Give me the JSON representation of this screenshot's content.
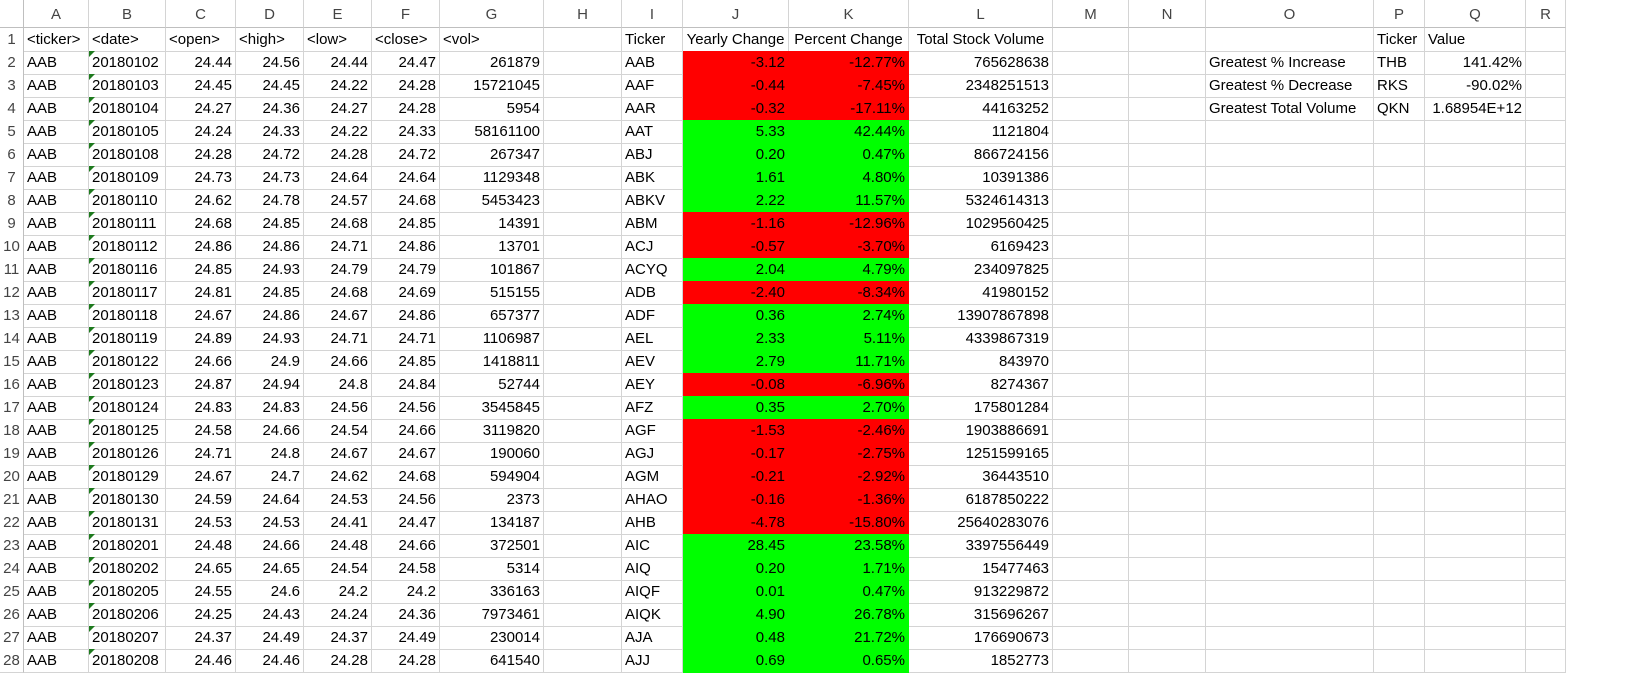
{
  "colors": {
    "negative_fill": "#ff0000",
    "positive_fill": "#00ff00",
    "gridline": "#d4d4d4",
    "number_stored_as_text_marker": "#1e7a1e"
  },
  "column_letters": [
    "A",
    "B",
    "C",
    "D",
    "E",
    "F",
    "G",
    "H",
    "I",
    "J",
    "K",
    "L",
    "M",
    "N",
    "O",
    "P",
    "Q",
    "R"
  ],
  "row_numbers": [
    "1",
    "2",
    "3",
    "4",
    "5",
    "6",
    "7",
    "8",
    "9",
    "10",
    "11",
    "12",
    "13",
    "14",
    "15",
    "16",
    "17",
    "18",
    "19",
    "20",
    "21",
    "22",
    "23",
    "24",
    "25",
    "26",
    "27",
    "28"
  ],
  "raw_headers": [
    "<ticker>",
    "<date>",
    "<open>",
    "<high>",
    "<low>",
    "<close>",
    "<vol>"
  ],
  "raw_rows": [
    [
      "AAB",
      "20180102",
      "24.44",
      "24.56",
      "24.44",
      "24.47",
      "261879"
    ],
    [
      "AAB",
      "20180103",
      "24.45",
      "24.45",
      "24.22",
      "24.28",
      "15721045"
    ],
    [
      "AAB",
      "20180104",
      "24.27",
      "24.36",
      "24.27",
      "24.28",
      "5954"
    ],
    [
      "AAB",
      "20180105",
      "24.24",
      "24.33",
      "24.22",
      "24.33",
      "58161100"
    ],
    [
      "AAB",
      "20180108",
      "24.28",
      "24.72",
      "24.28",
      "24.72",
      "267347"
    ],
    [
      "AAB",
      "20180109",
      "24.73",
      "24.73",
      "24.64",
      "24.64",
      "1129348"
    ],
    [
      "AAB",
      "20180110",
      "24.62",
      "24.78",
      "24.57",
      "24.68",
      "5453423"
    ],
    [
      "AAB",
      "20180111",
      "24.68",
      "24.85",
      "24.68",
      "24.85",
      "14391"
    ],
    [
      "AAB",
      "20180112",
      "24.86",
      "24.86",
      "24.71",
      "24.86",
      "13701"
    ],
    [
      "AAB",
      "20180116",
      "24.85",
      "24.93",
      "24.79",
      "24.79",
      "101867"
    ],
    [
      "AAB",
      "20180117",
      "24.81",
      "24.85",
      "24.68",
      "24.69",
      "515155"
    ],
    [
      "AAB",
      "20180118",
      "24.67",
      "24.86",
      "24.67",
      "24.86",
      "657377"
    ],
    [
      "AAB",
      "20180119",
      "24.89",
      "24.93",
      "24.71",
      "24.71",
      "1106987"
    ],
    [
      "AAB",
      "20180122",
      "24.66",
      "24.9",
      "24.66",
      "24.85",
      "1418811"
    ],
    [
      "AAB",
      "20180123",
      "24.87",
      "24.94",
      "24.8",
      "24.84",
      "52744"
    ],
    [
      "AAB",
      "20180124",
      "24.83",
      "24.83",
      "24.56",
      "24.56",
      "3545845"
    ],
    [
      "AAB",
      "20180125",
      "24.58",
      "24.66",
      "24.54",
      "24.66",
      "3119820"
    ],
    [
      "AAB",
      "20180126",
      "24.71",
      "24.8",
      "24.67",
      "24.67",
      "190060"
    ],
    [
      "AAB",
      "20180129",
      "24.67",
      "24.7",
      "24.62",
      "24.68",
      "594904"
    ],
    [
      "AAB",
      "20180130",
      "24.59",
      "24.64",
      "24.53",
      "24.56",
      "2373"
    ],
    [
      "AAB",
      "20180131",
      "24.53",
      "24.53",
      "24.41",
      "24.47",
      "134187"
    ],
    [
      "AAB",
      "20180201",
      "24.48",
      "24.66",
      "24.48",
      "24.66",
      "372501"
    ],
    [
      "AAB",
      "20180202",
      "24.65",
      "24.65",
      "24.54",
      "24.58",
      "5314"
    ],
    [
      "AAB",
      "20180205",
      "24.55",
      "24.6",
      "24.2",
      "24.2",
      "336163"
    ],
    [
      "AAB",
      "20180206",
      "24.25",
      "24.43",
      "24.24",
      "24.36",
      "7973461"
    ],
    [
      "AAB",
      "20180207",
      "24.37",
      "24.49",
      "24.37",
      "24.49",
      "230014"
    ],
    [
      "AAB",
      "20180208",
      "24.46",
      "24.46",
      "24.28",
      "24.28",
      "641540"
    ]
  ],
  "summary_headers": [
    "Ticker",
    "Yearly Change",
    "Percent Change",
    "Total Stock Volume"
  ],
  "summary_rows": [
    {
      "ticker": "AAB",
      "yearly": "-3.12",
      "percent": "-12.77%",
      "volume": "765628638",
      "sign": "neg"
    },
    {
      "ticker": "AAF",
      "yearly": "-0.44",
      "percent": "-7.45%",
      "volume": "2348251513",
      "sign": "neg"
    },
    {
      "ticker": "AAR",
      "yearly": "-0.32",
      "percent": "-17.11%",
      "volume": "44163252",
      "sign": "neg"
    },
    {
      "ticker": "AAT",
      "yearly": "5.33",
      "percent": "42.44%",
      "volume": "1121804",
      "sign": "pos"
    },
    {
      "ticker": "ABJ",
      "yearly": "0.20",
      "percent": "0.47%",
      "volume": "866724156",
      "sign": "pos"
    },
    {
      "ticker": "ABK",
      "yearly": "1.61",
      "percent": "4.80%",
      "volume": "10391386",
      "sign": "pos"
    },
    {
      "ticker": "ABKV",
      "yearly": "2.22",
      "percent": "11.57%",
      "volume": "5324614313",
      "sign": "pos"
    },
    {
      "ticker": "ABM",
      "yearly": "-1.16",
      "percent": "-12.96%",
      "volume": "1029560425",
      "sign": "neg"
    },
    {
      "ticker": "ACJ",
      "yearly": "-0.57",
      "percent": "-3.70%",
      "volume": "6169423",
      "sign": "neg"
    },
    {
      "ticker": "ACYQ",
      "yearly": "2.04",
      "percent": "4.79%",
      "volume": "234097825",
      "sign": "pos"
    },
    {
      "ticker": "ADB",
      "yearly": "-2.40",
      "percent": "-8.34%",
      "volume": "41980152",
      "sign": "neg"
    },
    {
      "ticker": "ADF",
      "yearly": "0.36",
      "percent": "2.74%",
      "volume": "13907867898",
      "sign": "pos"
    },
    {
      "ticker": "AEL",
      "yearly": "2.33",
      "percent": "5.11%",
      "volume": "4339867319",
      "sign": "pos"
    },
    {
      "ticker": "AEV",
      "yearly": "2.79",
      "percent": "11.71%",
      "volume": "843970",
      "sign": "pos"
    },
    {
      "ticker": "AEY",
      "yearly": "-0.08",
      "percent": "-6.96%",
      "volume": "8274367",
      "sign": "neg"
    },
    {
      "ticker": "AFZ",
      "yearly": "0.35",
      "percent": "2.70%",
      "volume": "175801284",
      "sign": "pos"
    },
    {
      "ticker": "AGF",
      "yearly": "-1.53",
      "percent": "-2.46%",
      "volume": "1903886691",
      "sign": "neg"
    },
    {
      "ticker": "AGJ",
      "yearly": "-0.17",
      "percent": "-2.75%",
      "volume": "1251599165",
      "sign": "neg"
    },
    {
      "ticker": "AGM",
      "yearly": "-0.21",
      "percent": "-2.92%",
      "volume": "36443510",
      "sign": "neg"
    },
    {
      "ticker": "AHAO",
      "yearly": "-0.16",
      "percent": "-1.36%",
      "volume": "6187850222",
      "sign": "neg"
    },
    {
      "ticker": "AHB",
      "yearly": "-4.78",
      "percent": "-15.80%",
      "volume": "25640283076",
      "sign": "neg"
    },
    {
      "ticker": "AIC",
      "yearly": "28.45",
      "percent": "23.58%",
      "volume": "3397556449",
      "sign": "pos"
    },
    {
      "ticker": "AIQ",
      "yearly": "0.20",
      "percent": "1.71%",
      "volume": "15477463",
      "sign": "pos"
    },
    {
      "ticker": "AIQF",
      "yearly": "0.01",
      "percent": "0.47%",
      "volume": "913229872",
      "sign": "pos"
    },
    {
      "ticker": "AIQK",
      "yearly": "4.90",
      "percent": "26.78%",
      "volume": "315696267",
      "sign": "pos"
    },
    {
      "ticker": "AJA",
      "yearly": "0.48",
      "percent": "21.72%",
      "volume": "176690673",
      "sign": "pos"
    },
    {
      "ticker": "AJJ",
      "yearly": "0.69",
      "percent": "0.65%",
      "volume": "1852773",
      "sign": "pos"
    }
  ],
  "greatest_headers": [
    "Ticker",
    "Value"
  ],
  "greatest_rows": [
    {
      "label": "Greatest % Increase",
      "ticker": "THB",
      "value": "141.42%"
    },
    {
      "label": "Greatest % Decrease",
      "ticker": "RKS",
      "value": "-90.02%"
    },
    {
      "label": "Greatest Total Volume",
      "ticker": "QKN",
      "value": "1.68954E+12"
    }
  ]
}
